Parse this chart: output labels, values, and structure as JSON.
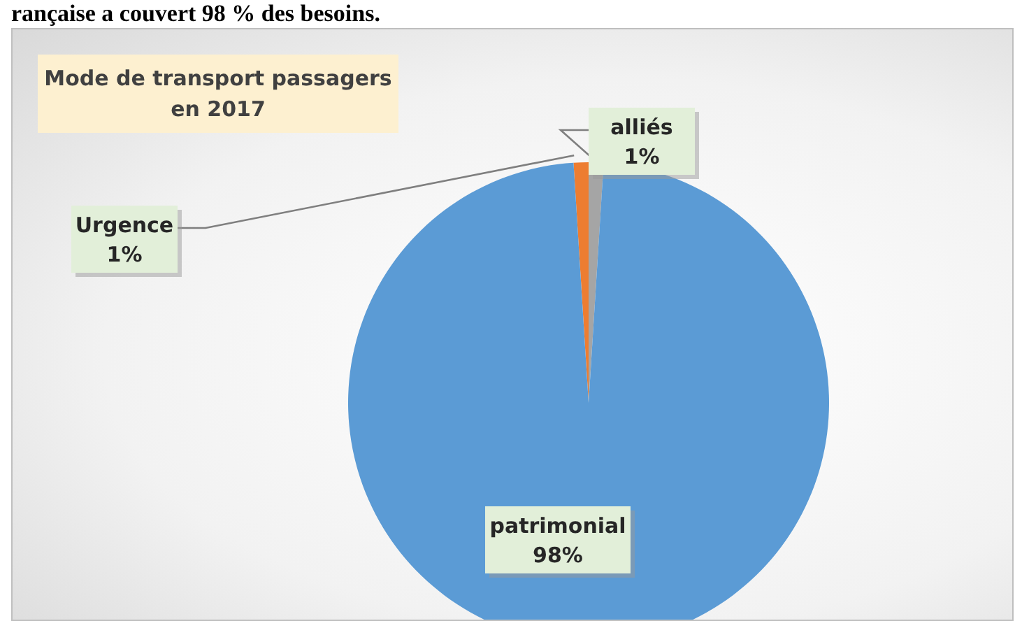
{
  "chart_data": {
    "type": "pie",
    "title": "Mode de transport passagers en 2017",
    "annotations": [
      "rançaise a couvert 98 % des besoins."
    ],
    "categories": [
      "Urgence",
      "alliés",
      "patrimonial"
    ],
    "values": [
      1,
      1,
      98
    ],
    "colors": [
      "#ed7d31",
      "#a5a5a5",
      "#5b9bd5"
    ],
    "value_labels": [
      "1%",
      "1%",
      "98%"
    ],
    "legend": false
  }
}
